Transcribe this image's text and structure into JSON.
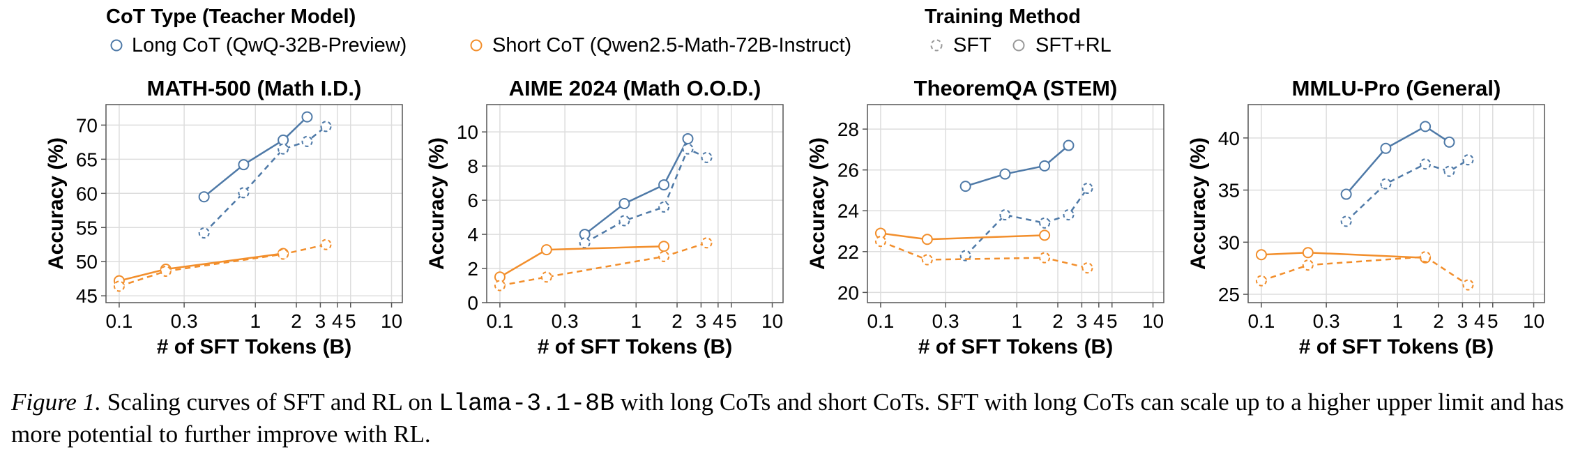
{
  "legend": {
    "cot_title": "CoT Type (Teacher Model)",
    "method_title": "Training Method",
    "long_label": "Long CoT (QwQ-32B-Preview)",
    "short_label": "Short CoT (Qwen2.5-Math-72B-Instruct)",
    "sft_label": "SFT",
    "sftrl_label": "SFT+RL"
  },
  "colors": {
    "long": "#4e79a7",
    "short": "#f28e2b",
    "grid": "#dddddd",
    "axis": "#555555"
  },
  "caption": {
    "label": "Figure 1.",
    "text_before": " Scaling curves of SFT and RL on ",
    "model": "Llama-3.1-8B",
    "text_after": " with long CoTs and short CoTs. SFT with long CoTs can scale up to a higher upper limit and has more potential to further improve with RL."
  },
  "chart_data": [
    {
      "type": "line",
      "title": "MATH-500 (Math I.D.)",
      "xlabel": "# of SFT Tokens (B)",
      "ylabel": "Accuracy (%)",
      "xscale": "log",
      "xlim": [
        0.08,
        12
      ],
      "ylim": [
        44,
        73
      ],
      "xticks": [
        0.1,
        0.3,
        1,
        2,
        3,
        4,
        5,
        10
      ],
      "xticklabels": [
        "0.1",
        "0.3",
        "1",
        "2",
        "3",
        "4",
        "5",
        "10"
      ],
      "yticks": [
        45,
        50,
        55,
        60,
        65,
        70
      ],
      "series": [
        {
          "name": "Long CoT SFT+RL",
          "cot": "long",
          "method": "SFT+RL",
          "x": [
            0.42,
            0.82,
            1.6,
            2.4
          ],
          "y": [
            59.5,
            64.2,
            67.8,
            71.2
          ]
        },
        {
          "name": "Long CoT SFT",
          "cot": "long",
          "method": "SFT",
          "x": [
            0.42,
            0.82,
            1.6,
            2.4,
            3.3
          ],
          "y": [
            54.2,
            60.1,
            66.5,
            67.6,
            69.8
          ]
        },
        {
          "name": "Short CoT SFT+RL",
          "cot": "short",
          "method": "SFT+RL",
          "x": [
            0.1,
            0.22,
            1.6
          ],
          "y": [
            47.2,
            48.9,
            51.2
          ]
        },
        {
          "name": "Short CoT SFT",
          "cot": "short",
          "method": "SFT",
          "x": [
            0.1,
            0.22,
            1.6,
            3.3
          ],
          "y": [
            46.4,
            48.6,
            51.1,
            52.5
          ]
        }
      ]
    },
    {
      "type": "line",
      "title": "AIME 2024 (Math O.O.D.)",
      "xlabel": "# of SFT Tokens (B)",
      "ylabel": "Accuracy (%)",
      "xscale": "log",
      "xlim": [
        0.08,
        12
      ],
      "ylim": [
        0,
        11.6
      ],
      "xticks": [
        0.1,
        0.3,
        1,
        2,
        3,
        4,
        5,
        10
      ],
      "xticklabels": [
        "0.1",
        "0.3",
        "1",
        "2",
        "3",
        "4",
        "5",
        "10"
      ],
      "yticks": [
        0,
        2,
        4,
        6,
        8,
        10
      ],
      "series": [
        {
          "name": "Long CoT SFT+RL",
          "cot": "long",
          "method": "SFT+RL",
          "x": [
            0.42,
            0.82,
            1.6,
            2.4
          ],
          "y": [
            4.0,
            5.8,
            6.9,
            9.6
          ]
        },
        {
          "name": "Long CoT SFT",
          "cot": "long",
          "method": "SFT",
          "x": [
            0.42,
            0.82,
            1.6,
            2.4,
            3.3
          ],
          "y": [
            3.5,
            4.8,
            5.6,
            9.0,
            8.5
          ]
        },
        {
          "name": "Short CoT SFT+RL",
          "cot": "short",
          "method": "SFT+RL",
          "x": [
            0.1,
            0.22,
            1.6
          ],
          "y": [
            1.5,
            3.1,
            3.3
          ]
        },
        {
          "name": "Short CoT SFT",
          "cot": "short",
          "method": "SFT",
          "x": [
            0.1,
            0.22,
            1.6,
            3.3
          ],
          "y": [
            1.0,
            1.5,
            2.7,
            3.5
          ]
        }
      ]
    },
    {
      "type": "line",
      "title": "TheoremQA (STEM)",
      "xlabel": "# of SFT Tokens (B)",
      "ylabel": "Accuracy (%)",
      "xscale": "log",
      "xlim": [
        0.08,
        12
      ],
      "ylim": [
        19.5,
        29.2
      ],
      "xticks": [
        0.1,
        0.3,
        1,
        2,
        3,
        4,
        5,
        10
      ],
      "xticklabels": [
        "0.1",
        "0.3",
        "1",
        "2",
        "3",
        "4",
        "5",
        "10"
      ],
      "yticks": [
        20,
        22,
        24,
        26,
        28
      ],
      "series": [
        {
          "name": "Long CoT SFT+RL",
          "cot": "long",
          "method": "SFT+RL",
          "x": [
            0.42,
            0.82,
            1.6,
            2.4
          ],
          "y": [
            25.2,
            25.8,
            26.2,
            27.2
          ]
        },
        {
          "name": "Long CoT SFT",
          "cot": "long",
          "method": "SFT",
          "x": [
            0.42,
            0.82,
            1.6,
            2.4,
            3.3
          ],
          "y": [
            21.8,
            23.8,
            23.4,
            23.8,
            25.1
          ]
        },
        {
          "name": "Short CoT SFT+RL",
          "cot": "short",
          "method": "SFT+RL",
          "x": [
            0.1,
            0.22,
            1.6
          ],
          "y": [
            22.9,
            22.6,
            22.8
          ]
        },
        {
          "name": "Short CoT SFT",
          "cot": "short",
          "method": "SFT",
          "x": [
            0.1,
            0.22,
            1.6,
            3.3
          ],
          "y": [
            22.5,
            21.6,
            21.7,
            21.2
          ]
        }
      ]
    },
    {
      "type": "line",
      "title": "MMLU-Pro (General)",
      "xlabel": "# of SFT Tokens (B)",
      "ylabel": "Accuracy (%)",
      "xscale": "log",
      "xlim": [
        0.08,
        12
      ],
      "ylim": [
        24.2,
        43.2
      ],
      "xticks": [
        0.1,
        0.3,
        1,
        2,
        3,
        4,
        5,
        10
      ],
      "xticklabels": [
        "0.1",
        "0.3",
        "1",
        "2",
        "3",
        "4",
        "5",
        "10"
      ],
      "yticks": [
        25,
        30,
        35,
        40
      ],
      "series": [
        {
          "name": "Long CoT SFT+RL",
          "cot": "long",
          "method": "SFT+RL",
          "x": [
            0.42,
            0.82,
            1.6,
            2.4
          ],
          "y": [
            34.6,
            39.0,
            41.1,
            39.6
          ]
        },
        {
          "name": "Long CoT SFT",
          "cot": "long",
          "method": "SFT",
          "x": [
            0.42,
            0.82,
            1.6,
            2.4,
            3.3
          ],
          "y": [
            32.0,
            35.6,
            37.5,
            36.8,
            37.9
          ]
        },
        {
          "name": "Short CoT SFT+RL",
          "cot": "short",
          "method": "SFT+RL",
          "x": [
            0.1,
            0.22,
            1.6
          ],
          "y": [
            28.8,
            29.0,
            28.5
          ]
        },
        {
          "name": "Short CoT SFT",
          "cot": "short",
          "method": "SFT",
          "x": [
            0.1,
            0.22,
            1.6,
            3.3
          ],
          "y": [
            26.3,
            27.8,
            28.6,
            25.9
          ]
        }
      ]
    }
  ]
}
